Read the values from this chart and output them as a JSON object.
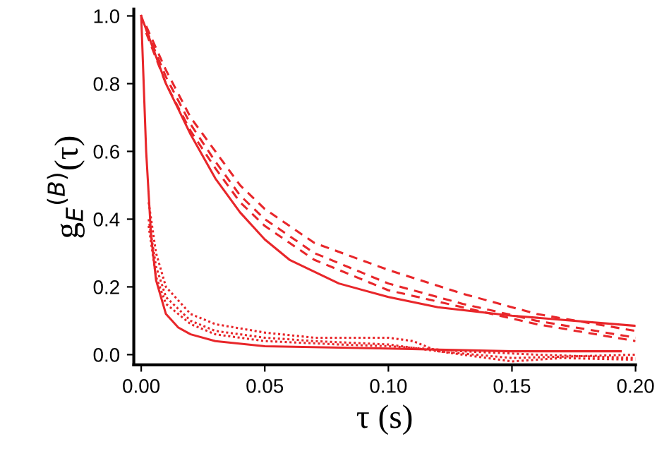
{
  "chart_data": {
    "type": "line",
    "xlabel": "τ (s)",
    "ylabel": "g$_{E}$$^{(B)}$(τ)",
    "xlim": [
      -0.003,
      0.2
    ],
    "ylim": [
      -0.03,
      1.02
    ],
    "xticks": [
      {
        "value": 0,
        "label": "0.00"
      },
      0.05,
      {
        "value": 0.1,
        "label": "0.10"
      },
      0.15,
      {
        "value": 0.2,
        "label": "0.20"
      }
    ],
    "yticks": [
      {
        "value": 0,
        "label": "0.0"
      },
      0.2,
      0.4,
      0.6,
      0.8,
      {
        "value": 1,
        "label": "1.0"
      }
    ],
    "grid": false,
    "legend": false,
    "marker": "none",
    "series": [
      {
        "color": "#e8262a",
        "line_style": "solid",
        "x": [
          0,
          0.005,
          0.01,
          0.02,
          0.03,
          0.04,
          0.05,
          0.06,
          0.08,
          0.1,
          0.12,
          0.15,
          0.2
        ],
        "values": [
          1.0,
          0.9,
          0.8,
          0.65,
          0.52,
          0.42,
          0.34,
          0.28,
          0.21,
          0.17,
          0.14,
          0.115,
          0.085
        ]
      },
      {
        "color": "#e8262a",
        "line_style": "dashed",
        "x": [
          0.002,
          0.01,
          0.02,
          0.03,
          0.04,
          0.05,
          0.07,
          0.1,
          0.13,
          0.16,
          0.2
        ],
        "values": [
          0.97,
          0.84,
          0.7,
          0.6,
          0.5,
          0.43,
          0.33,
          0.25,
          0.18,
          0.12,
          0.07
        ]
      },
      {
        "color": "#e8262a",
        "line_style": "dashed",
        "x": [
          0.002,
          0.01,
          0.02,
          0.03,
          0.04,
          0.05,
          0.07,
          0.1,
          0.13,
          0.16,
          0.2
        ],
        "values": [
          0.96,
          0.82,
          0.68,
          0.57,
          0.47,
          0.4,
          0.3,
          0.21,
          0.15,
          0.1,
          0.05
        ]
      },
      {
        "color": "#e8262a",
        "line_style": "dashed",
        "x": [
          0.002,
          0.01,
          0.02,
          0.03,
          0.04,
          0.05,
          0.07,
          0.1,
          0.13,
          0.16,
          0.2
        ],
        "values": [
          0.95,
          0.8,
          0.66,
          0.55,
          0.45,
          0.38,
          0.28,
          0.19,
          0.14,
          0.09,
          0.04
        ]
      },
      {
        "color": "#e8262a",
        "line_style": "solid",
        "x": [
          0,
          0.002,
          0.004,
          0.006,
          0.01,
          0.015,
          0.02,
          0.03,
          0.05,
          0.1,
          0.15,
          0.194
        ],
        "values": [
          1.0,
          0.6,
          0.35,
          0.22,
          0.12,
          0.08,
          0.06,
          0.04,
          0.025,
          0.018,
          0.01,
          0.01
        ]
      },
      {
        "color": "#e8262a",
        "line_style": "dotted",
        "x": [
          0.003,
          0.006,
          0.01,
          0.02,
          0.03,
          0.05,
          0.07,
          0.09,
          0.1,
          0.11,
          0.12,
          0.15,
          0.17,
          0.2
        ],
        "values": [
          0.45,
          0.3,
          0.2,
          0.12,
          0.09,
          0.065,
          0.05,
          0.05,
          0.05,
          0.04,
          0.01,
          -0.02,
          -0.01,
          -0.015
        ]
      },
      {
        "color": "#e8262a",
        "line_style": "dotted",
        "x": [
          0.003,
          0.006,
          0.01,
          0.02,
          0.03,
          0.05,
          0.07,
          0.1,
          0.12,
          0.15,
          0.2
        ],
        "values": [
          0.4,
          0.26,
          0.17,
          0.1,
          0.07,
          0.05,
          0.04,
          0.03,
          0.01,
          -0.01,
          0.0
        ]
      },
      {
        "color": "#e8262a",
        "line_style": "dotted",
        "x": [
          0.003,
          0.006,
          0.01,
          0.02,
          0.03,
          0.05,
          0.08,
          0.1,
          0.13,
          0.16,
          0.2
        ],
        "values": [
          0.38,
          0.23,
          0.15,
          0.09,
          0.06,
          0.04,
          0.03,
          0.025,
          0.01,
          0.0,
          -0.01
        ]
      }
    ]
  }
}
